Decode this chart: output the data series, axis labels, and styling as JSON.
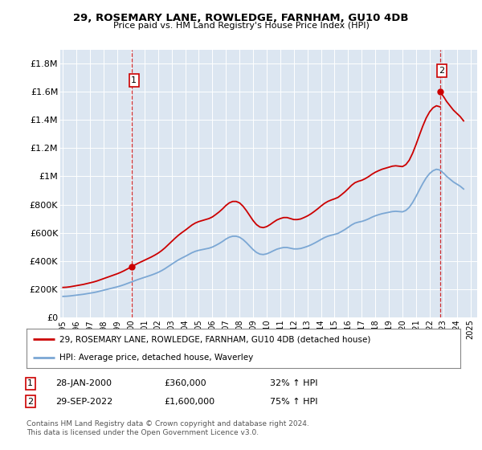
{
  "title": "29, ROSEMARY LANE, ROWLEDGE, FARNHAM, GU10 4DB",
  "subtitle": "Price paid vs. HM Land Registry's House Price Index (HPI)",
  "property_label": "29, ROSEMARY LANE, ROWLEDGE, FARNHAM, GU10 4DB (detached house)",
  "hpi_label": "HPI: Average price, detached house, Waverley",
  "license_text1": "Contains HM Land Registry data © Crown copyright and database right 2024.",
  "license_text2": "This data is licensed under the Open Government Licence v3.0.",
  "annotation1": {
    "num": "1",
    "date": "28-JAN-2000",
    "price": "£360,000",
    "hpi": "32% ↑ HPI"
  },
  "annotation2": {
    "num": "2",
    "date": "29-SEP-2022",
    "price": "£1,600,000",
    "hpi": "75% ↑ HPI"
  },
  "property_color": "#cc0000",
  "hpi_color": "#7ba7d4",
  "plot_bg_color": "#dce6f1",
  "ylim": [
    0,
    1900000
  ],
  "xlim_start": 1994.8,
  "xlim_end": 2025.5,
  "yticks": [
    0,
    200000,
    400000,
    600000,
    800000,
    1000000,
    1200000,
    1400000,
    1600000,
    1800000
  ],
  "ytick_labels": [
    "£0",
    "£200K",
    "£400K",
    "£600K",
    "£800K",
    "£1M",
    "£1.2M",
    "£1.4M",
    "£1.6M",
    "£1.8M"
  ],
  "xtick_years": [
    1995,
    1996,
    1997,
    1998,
    1999,
    2000,
    2001,
    2002,
    2003,
    2004,
    2005,
    2006,
    2007,
    2008,
    2009,
    2010,
    2011,
    2012,
    2013,
    2014,
    2015,
    2016,
    2017,
    2018,
    2019,
    2020,
    2021,
    2022,
    2023,
    2024,
    2025
  ],
  "hpi_x": [
    1995.0,
    1995.25,
    1995.5,
    1995.75,
    1996.0,
    1996.25,
    1996.5,
    1996.75,
    1997.0,
    1997.25,
    1997.5,
    1997.75,
    1998.0,
    1998.25,
    1998.5,
    1998.75,
    1999.0,
    1999.25,
    1999.5,
    1999.75,
    2000.0,
    2000.25,
    2000.5,
    2000.75,
    2001.0,
    2001.25,
    2001.5,
    2001.75,
    2002.0,
    2002.25,
    2002.5,
    2002.75,
    2003.0,
    2003.25,
    2003.5,
    2003.75,
    2004.0,
    2004.25,
    2004.5,
    2004.75,
    2005.0,
    2005.25,
    2005.5,
    2005.75,
    2006.0,
    2006.25,
    2006.5,
    2006.75,
    2007.0,
    2007.25,
    2007.5,
    2007.75,
    2008.0,
    2008.25,
    2008.5,
    2008.75,
    2009.0,
    2009.25,
    2009.5,
    2009.75,
    2010.0,
    2010.25,
    2010.5,
    2010.75,
    2011.0,
    2011.25,
    2011.5,
    2011.75,
    2012.0,
    2012.25,
    2012.5,
    2012.75,
    2013.0,
    2013.25,
    2013.5,
    2013.75,
    2014.0,
    2014.25,
    2014.5,
    2014.75,
    2015.0,
    2015.25,
    2015.5,
    2015.75,
    2016.0,
    2016.25,
    2016.5,
    2016.75,
    2017.0,
    2017.25,
    2017.5,
    2017.75,
    2018.0,
    2018.25,
    2018.5,
    2018.75,
    2019.0,
    2019.25,
    2019.5,
    2019.75,
    2020.0,
    2020.25,
    2020.5,
    2020.75,
    2021.0,
    2021.25,
    2021.5,
    2021.75,
    2022.0,
    2022.25,
    2022.5,
    2022.75,
    2023.0,
    2023.25,
    2023.5,
    2023.75,
    2024.0,
    2024.25,
    2024.5
  ],
  "hpi_y": [
    148000,
    149000,
    151000,
    154000,
    157000,
    160000,
    163000,
    167000,
    171000,
    175000,
    180000,
    186000,
    192000,
    198000,
    204000,
    210000,
    216000,
    223000,
    231000,
    240000,
    249000,
    258000,
    267000,
    275000,
    283000,
    291000,
    299000,
    308000,
    318000,
    330000,
    344000,
    360000,
    376000,
    392000,
    407000,
    420000,
    432000,
    445000,
    458000,
    468000,
    475000,
    480000,
    485000,
    490000,
    498000,
    510000,
    523000,
    538000,
    555000,
    568000,
    575000,
    575000,
    568000,
    552000,
    530000,
    505000,
    480000,
    460000,
    448000,
    445000,
    450000,
    460000,
    472000,
    483000,
    490000,
    495000,
    495000,
    490000,
    485000,
    485000,
    488000,
    495000,
    503000,
    513000,
    525000,
    538000,
    552000,
    565000,
    575000,
    582000,
    588000,
    595000,
    608000,
    622000,
    638000,
    655000,
    668000,
    675000,
    680000,
    688000,
    698000,
    710000,
    720000,
    728000,
    735000,
    740000,
    745000,
    750000,
    752000,
    750000,
    748000,
    758000,
    780000,
    815000,
    858000,
    905000,
    950000,
    990000,
    1020000,
    1040000,
    1050000,
    1045000,
    1025000,
    1000000,
    980000,
    960000,
    945000,
    930000,
    910000
  ],
  "sale1_x": 2000.08,
  "sale1_y": 360000,
  "sale2_x": 2022.75,
  "sale2_y": 1600000
}
